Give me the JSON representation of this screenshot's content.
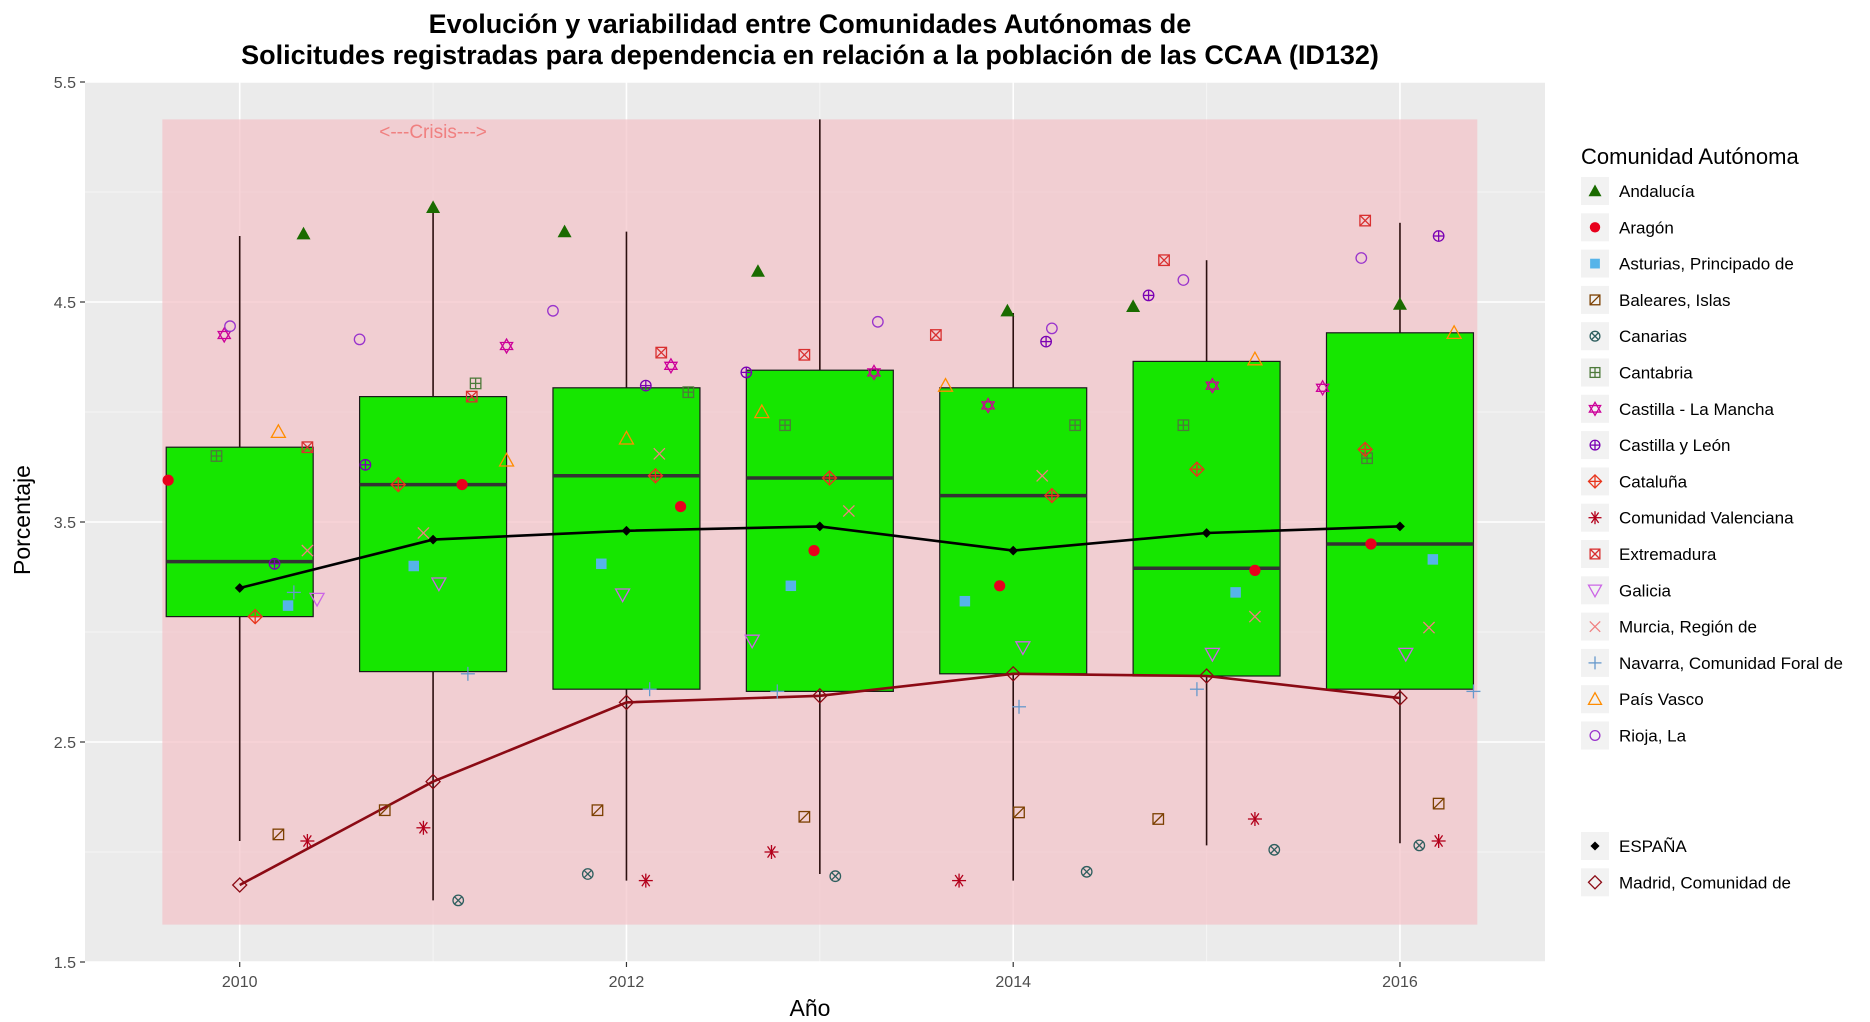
{
  "chart_data": {
    "type": "boxplot",
    "title_line1": "Evolución y variabilidad entre Comunidades Autónomas de",
    "title_line2": "Solicitudes registradas para dependencia en relación a la población de las CCAA (ID132)",
    "xlabel": "Año",
    "ylabel": "Porcentaje",
    "xlim": [
      2009.2,
      2016.75
    ],
    "ylim": [
      1.5,
      5.5
    ],
    "x_ticks": [
      2010,
      2012,
      2014,
      2016
    ],
    "x_tick_labels": [
      "2010",
      "2012",
      "2014",
      "2016"
    ],
    "y_ticks": [
      1.5,
      2.5,
      3.5,
      4.5,
      5.5
    ],
    "y_tick_labels": [
      "1.5",
      "2.5",
      "3.5",
      "4.5",
      "5.5"
    ],
    "background": "#ebebeb",
    "grid": true,
    "crisis_band": {
      "x": [
        2009.6,
        2016.4
      ],
      "y": [
        1.67,
        5.33
      ],
      "color": "#f4c2c8",
      "label": "<---Crisis--->",
      "label_x": 2011,
      "label_y": 5.3
    },
    "boxes": [
      {
        "year": 2010,
        "x": 2010,
        "half_width": 0.38,
        "lower_whisker": 2.05,
        "q1": 3.07,
        "median": 3.32,
        "q3": 3.84,
        "upper_whisker": 4.8
      },
      {
        "year": 2011,
        "x": 2011,
        "half_width": 0.38,
        "lower_whisker": 1.78,
        "q1": 2.82,
        "median": 3.67,
        "q3": 4.07,
        "upper_whisker": 4.95
      },
      {
        "year": 2012,
        "x": 2012,
        "half_width": 0.38,
        "lower_whisker": 1.87,
        "q1": 2.74,
        "median": 3.71,
        "q3": 4.11,
        "upper_whisker": 4.82
      },
      {
        "year": 2013,
        "x": 2013,
        "half_width": 0.38,
        "lower_whisker": 1.9,
        "q1": 2.73,
        "median": 3.7,
        "q3": 4.19,
        "upper_whisker": 5.33
      },
      {
        "year": 2014,
        "x": 2014,
        "half_width": 0.38,
        "lower_whisker": 1.87,
        "q1": 2.81,
        "median": 3.62,
        "q3": 4.11,
        "upper_whisker": 4.45
      },
      {
        "year": 2015,
        "x": 2015,
        "half_width": 0.38,
        "lower_whisker": 2.03,
        "q1": 2.8,
        "median": 3.29,
        "q3": 4.23,
        "upper_whisker": 4.69
      },
      {
        "year": 2016,
        "x": 2016,
        "half_width": 0.38,
        "lower_whisker": 2.04,
        "q1": 2.74,
        "median": 3.4,
        "q3": 4.36,
        "upper_whisker": 4.86
      }
    ],
    "box_fill": "#16e600",
    "legend_title": "Comunidad Autónoma",
    "series": [
      {
        "name": "Andalucía",
        "color": "#1a6b00",
        "shape": "triangle-filled",
        "points": [
          [
            2010.33,
            4.81
          ],
          [
            2011.0,
            4.93
          ],
          [
            2011.68,
            4.82
          ],
          [
            2012.68,
            4.64
          ],
          [
            2013.97,
            4.46
          ],
          [
            2014.62,
            4.48
          ],
          [
            2016.0,
            4.49
          ]
        ]
      },
      {
        "name": "Aragón",
        "color": "#e8001c",
        "shape": "circle-filled",
        "points": [
          [
            2009.63,
            3.69
          ],
          [
            2011.15,
            3.67
          ],
          [
            2012.28,
            3.57
          ],
          [
            2012.97,
            3.37
          ],
          [
            2013.93,
            3.21
          ],
          [
            2015.25,
            3.28
          ],
          [
            2015.85,
            3.4
          ]
        ]
      },
      {
        "name": "Asturias, Principado de",
        "color": "#56b4e9",
        "shape": "square-filled",
        "points": [
          [
            2010.25,
            3.12
          ],
          [
            2010.9,
            3.3
          ],
          [
            2011.87,
            3.31
          ],
          [
            2012.85,
            3.21
          ],
          [
            2013.75,
            3.14
          ],
          [
            2015.15,
            3.18
          ],
          [
            2016.17,
            3.33
          ]
        ]
      },
      {
        "name": "Baleares, Islas",
        "color": "#7b3f00",
        "shape": "square-slash",
        "points": [
          [
            2010.2,
            2.08
          ],
          [
            2010.75,
            2.19
          ],
          [
            2011.85,
            2.19
          ],
          [
            2012.92,
            2.16
          ],
          [
            2014.03,
            2.18
          ],
          [
            2014.75,
            2.15
          ],
          [
            2016.2,
            2.22
          ]
        ]
      },
      {
        "name": "Canarias",
        "color": "#2f5f5f",
        "shape": "circle-x",
        "points": [
          [
            2011.13,
            1.78
          ],
          [
            2011.8,
            1.9
          ],
          [
            2013.08,
            1.89
          ],
          [
            2014.38,
            1.91
          ],
          [
            2015.35,
            2.01
          ],
          [
            2016.1,
            2.03
          ]
        ]
      },
      {
        "name": "Cantabria",
        "color": "#4d7a3a",
        "shape": "square-plus",
        "points": [
          [
            2009.88,
            3.8
          ],
          [
            2011.22,
            4.13
          ],
          [
            2012.32,
            4.09
          ],
          [
            2012.82,
            3.94
          ],
          [
            2014.32,
            3.94
          ],
          [
            2014.88,
            3.94
          ],
          [
            2015.83,
            3.79
          ]
        ]
      },
      {
        "name": "Castilla - La Mancha",
        "color": "#cc0099",
        "shape": "star-of-david",
        "points": [
          [
            2009.92,
            4.35
          ],
          [
            2011.38,
            4.3
          ],
          [
            2012.23,
            4.21
          ],
          [
            2013.28,
            4.18
          ],
          [
            2013.87,
            4.03
          ],
          [
            2015.03,
            4.12
          ],
          [
            2015.6,
            4.11
          ]
        ]
      },
      {
        "name": "Castilla y León",
        "color": "#7a00b3",
        "shape": "circle-plus",
        "points": [
          [
            2010.18,
            3.31
          ],
          [
            2010.65,
            3.76
          ],
          [
            2012.1,
            4.12
          ],
          [
            2012.62,
            4.18
          ],
          [
            2014.17,
            4.32
          ],
          [
            2014.7,
            4.53
          ],
          [
            2016.2,
            4.8
          ]
        ]
      },
      {
        "name": "Cataluña",
        "color": "#e8351c",
        "shape": "diamond-plus",
        "points": [
          [
            2010.08,
            3.07
          ],
          [
            2010.82,
            3.67
          ],
          [
            2012.15,
            3.71
          ],
          [
            2013.05,
            3.7
          ],
          [
            2014.2,
            3.62
          ],
          [
            2014.95,
            3.74
          ],
          [
            2015.82,
            3.83
          ]
        ]
      },
      {
        "name": "Comunidad Valenciana",
        "color": "#b3001b",
        "shape": "asterisk",
        "points": [
          [
            2010.35,
            2.05
          ],
          [
            2010.95,
            2.11
          ],
          [
            2012.1,
            1.87
          ],
          [
            2012.75,
            2.0
          ],
          [
            2013.72,
            1.87
          ],
          [
            2015.25,
            2.15
          ],
          [
            2016.2,
            2.05
          ]
        ]
      },
      {
        "name": "Extremadura",
        "color": "#d93030",
        "shape": "square-x",
        "points": [
          [
            2010.35,
            3.84
          ],
          [
            2011.2,
            4.07
          ],
          [
            2012.18,
            4.27
          ],
          [
            2012.92,
            4.26
          ],
          [
            2013.6,
            4.35
          ],
          [
            2014.78,
            4.69
          ],
          [
            2015.82,
            4.87
          ]
        ]
      },
      {
        "name": "Galicia",
        "color": "#cc66e6",
        "shape": "triangle-down-open",
        "points": [
          [
            2010.4,
            3.15
          ],
          [
            2011.03,
            3.22
          ],
          [
            2011.98,
            3.17
          ],
          [
            2012.65,
            2.96
          ],
          [
            2014.05,
            2.93
          ],
          [
            2015.03,
            2.9
          ],
          [
            2016.03,
            2.9
          ]
        ]
      },
      {
        "name": "Murcia, Región de",
        "color": "#f08080",
        "shape": "cross-x",
        "points": [
          [
            2010.35,
            3.37
          ],
          [
            2010.95,
            3.45
          ],
          [
            2012.17,
            3.81
          ],
          [
            2013.15,
            3.55
          ],
          [
            2014.15,
            3.71
          ],
          [
            2015.25,
            3.07
          ],
          [
            2016.15,
            3.02
          ]
        ]
      },
      {
        "name": "Navarra, Comunidad Foral de",
        "color": "#6699cc",
        "shape": "plus",
        "points": [
          [
            2010.28,
            3.18
          ],
          [
            2011.18,
            2.81
          ],
          [
            2012.12,
            2.74
          ],
          [
            2012.78,
            2.73
          ],
          [
            2014.03,
            2.66
          ],
          [
            2014.95,
            2.74
          ],
          [
            2016.38,
            2.73
          ]
        ]
      },
      {
        "name": "País Vasco",
        "color": "#ff8c00",
        "shape": "triangle-open",
        "points": [
          [
            2010.2,
            3.91
          ],
          [
            2011.38,
            3.78
          ],
          [
            2012.0,
            3.88
          ],
          [
            2012.7,
            4.0
          ],
          [
            2013.65,
            4.12
          ],
          [
            2015.25,
            4.24
          ],
          [
            2016.28,
            4.36
          ]
        ]
      },
      {
        "name": "Rioja, La",
        "color": "#9933cc",
        "shape": "circle-open",
        "points": [
          [
            2009.95,
            4.39
          ],
          [
            2010.62,
            4.33
          ],
          [
            2011.62,
            4.46
          ],
          [
            2013.3,
            4.41
          ],
          [
            2014.2,
            4.38
          ],
          [
            2014.88,
            4.6
          ],
          [
            2015.8,
            4.7
          ]
        ]
      }
    ],
    "lines": [
      {
        "name": "ESPAÑA",
        "color": "#000000",
        "shape": "diamond-filled",
        "points": [
          [
            2010,
            3.2
          ],
          [
            2011,
            3.42
          ],
          [
            2012,
            3.46
          ],
          [
            2013,
            3.48
          ],
          [
            2014,
            3.37
          ],
          [
            2015,
            3.45
          ],
          [
            2016,
            3.48
          ]
        ]
      },
      {
        "name": "Madrid, Comunidad de",
        "color": "#8b0a14",
        "shape": "diamond-open",
        "points": [
          [
            2010,
            1.85
          ],
          [
            2011,
            2.32
          ],
          [
            2012,
            2.68
          ],
          [
            2013,
            2.71
          ],
          [
            2014,
            2.81
          ],
          [
            2015,
            2.8
          ],
          [
            2016,
            2.7
          ]
        ]
      }
    ]
  }
}
